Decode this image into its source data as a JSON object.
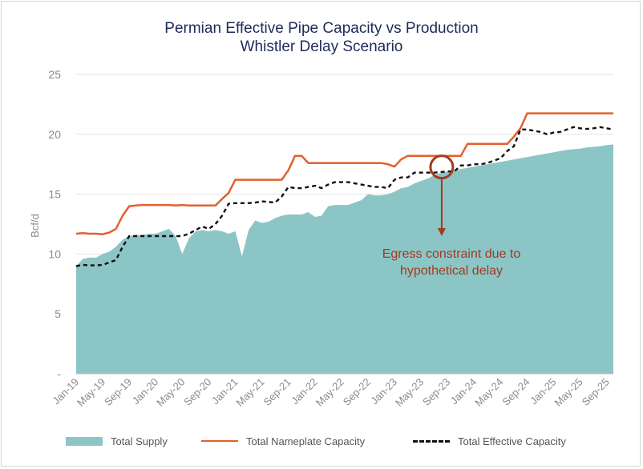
{
  "chart_data": {
    "type": "area",
    "title": "Permian Effective Pipe Capacity vs Production",
    "subtitle": "Whistler Delay Scenario",
    "ylabel": "Bcf/d",
    "xlabel": "",
    "ylim": [
      0,
      25
    ],
    "yticks": [
      "-",
      "5",
      "10",
      "15",
      "20",
      "25"
    ],
    "x_tick_labels": [
      "Jan-19",
      "May-19",
      "Sep-19",
      "Jan-20",
      "May-20",
      "Sep-20",
      "Jan-21",
      "May-21",
      "Sep-21",
      "Jan-22",
      "May-22",
      "Sep-22",
      "Jan-23",
      "May-23",
      "Sep-23",
      "Jan-24",
      "May-24",
      "Sep-24",
      "Jan-25",
      "May-25",
      "Sep-25"
    ],
    "grid": true,
    "legend_position": "bottom",
    "series": [
      {
        "name": "Total Supply",
        "type": "area",
        "color": "#8cc5c6",
        "values": [
          [
            0,
            9.0
          ],
          [
            1,
            9.6
          ],
          [
            2,
            9.7
          ],
          [
            3,
            9.7
          ],
          [
            4,
            10.0
          ],
          [
            5,
            10.2
          ],
          [
            6,
            10.6
          ],
          [
            7,
            11.2
          ],
          [
            8,
            11.5
          ],
          [
            9,
            11.6
          ],
          [
            10,
            11.6
          ],
          [
            11,
            11.7
          ],
          [
            12,
            11.7
          ],
          [
            13,
            11.9
          ],
          [
            14,
            12.1
          ],
          [
            15,
            11.5
          ],
          [
            16,
            10.0
          ],
          [
            17,
            11.3
          ],
          [
            18,
            11.9
          ],
          [
            19,
            12.0
          ],
          [
            20,
            11.9
          ],
          [
            21,
            12.0
          ],
          [
            22,
            11.9
          ],
          [
            23,
            11.7
          ],
          [
            24,
            11.9
          ],
          [
            25,
            9.8
          ],
          [
            26,
            12.0
          ],
          [
            27,
            12.8
          ],
          [
            28,
            12.6
          ],
          [
            29,
            12.7
          ],
          [
            30,
            13.0
          ],
          [
            31,
            13.2
          ],
          [
            32,
            13.3
          ],
          [
            33,
            13.3
          ],
          [
            34,
            13.3
          ],
          [
            35,
            13.5
          ],
          [
            36,
            13.1
          ],
          [
            37,
            13.2
          ],
          [
            38,
            14.0
          ],
          [
            39,
            14.1
          ],
          [
            40,
            14.1
          ],
          [
            41,
            14.1
          ],
          [
            42,
            14.3
          ],
          [
            43,
            14.5
          ],
          [
            44,
            15.0
          ],
          [
            45,
            14.9
          ],
          [
            46,
            14.9
          ],
          [
            47,
            15.0
          ],
          [
            48,
            15.2
          ],
          [
            49,
            15.5
          ],
          [
            50,
            15.6
          ],
          [
            51,
            15.9
          ],
          [
            52,
            16.1
          ],
          [
            53,
            16.3
          ],
          [
            54,
            16.6
          ],
          [
            55,
            16.8
          ],
          [
            56,
            16.9
          ],
          [
            57,
            17.0
          ],
          [
            58,
            17.1
          ],
          [
            59,
            17.2
          ],
          [
            60,
            17.3
          ],
          [
            61,
            17.4
          ],
          [
            62,
            17.5
          ],
          [
            63,
            17.6
          ],
          [
            64,
            17.7
          ],
          [
            65,
            17.8
          ],
          [
            66,
            17.9
          ],
          [
            67,
            18.0
          ],
          [
            68,
            18.1
          ],
          [
            69,
            18.2
          ],
          [
            70,
            18.3
          ],
          [
            71,
            18.4
          ],
          [
            72,
            18.5
          ],
          [
            73,
            18.6
          ],
          [
            74,
            18.7
          ],
          [
            75,
            18.75
          ],
          [
            76,
            18.8
          ],
          [
            77,
            18.9
          ],
          [
            78,
            18.95
          ],
          [
            79,
            19.0
          ],
          [
            80,
            19.1
          ],
          [
            81,
            19.15
          ]
        ]
      },
      {
        "name": "Total Nameplate Capacity",
        "type": "line",
        "color": "#e3602d",
        "values": [
          [
            0,
            11.7
          ],
          [
            1,
            11.75
          ],
          [
            2,
            11.7
          ],
          [
            3,
            11.7
          ],
          [
            4,
            11.65
          ],
          [
            5,
            11.8
          ],
          [
            6,
            12.1
          ],
          [
            7,
            13.2
          ],
          [
            8,
            14.0
          ],
          [
            9,
            14.05
          ],
          [
            10,
            14.1
          ],
          [
            11,
            14.1
          ],
          [
            12,
            14.1
          ],
          [
            13,
            14.1
          ],
          [
            14,
            14.1
          ],
          [
            15,
            14.05
          ],
          [
            16,
            14.1
          ],
          [
            17,
            14.05
          ],
          [
            18,
            14.05
          ],
          [
            19,
            14.05
          ],
          [
            20,
            14.05
          ],
          [
            21,
            14.05
          ],
          [
            22,
            14.6
          ],
          [
            23,
            15.1
          ],
          [
            24,
            16.2
          ],
          [
            25,
            16.2
          ],
          [
            26,
            16.2
          ],
          [
            27,
            16.2
          ],
          [
            28,
            16.2
          ],
          [
            29,
            16.2
          ],
          [
            30,
            16.2
          ],
          [
            31,
            16.2
          ],
          [
            32,
            17.0
          ],
          [
            33,
            18.2
          ],
          [
            34,
            18.2
          ],
          [
            35,
            17.6
          ],
          [
            36,
            17.6
          ],
          [
            37,
            17.6
          ],
          [
            38,
            17.6
          ],
          [
            39,
            17.6
          ],
          [
            40,
            17.6
          ],
          [
            41,
            17.6
          ],
          [
            42,
            17.6
          ],
          [
            43,
            17.6
          ],
          [
            44,
            17.6
          ],
          [
            45,
            17.6
          ],
          [
            46,
            17.6
          ],
          [
            47,
            17.5
          ],
          [
            48,
            17.3
          ],
          [
            49,
            17.9
          ],
          [
            50,
            18.2
          ],
          [
            51,
            18.2
          ],
          [
            52,
            18.2
          ],
          [
            53,
            18.2
          ],
          [
            54,
            18.2
          ],
          [
            55,
            18.2
          ],
          [
            56,
            18.2
          ],
          [
            57,
            18.2
          ],
          [
            58,
            18.2
          ],
          [
            59,
            19.2
          ],
          [
            60,
            19.2
          ],
          [
            61,
            19.2
          ],
          [
            62,
            19.2
          ],
          [
            63,
            19.2
          ],
          [
            64,
            19.2
          ],
          [
            65,
            19.2
          ],
          [
            66,
            19.8
          ],
          [
            67,
            20.5
          ],
          [
            68,
            21.75
          ],
          [
            69,
            21.75
          ],
          [
            70,
            21.75
          ],
          [
            71,
            21.75
          ],
          [
            72,
            21.75
          ],
          [
            73,
            21.75
          ],
          [
            74,
            21.75
          ],
          [
            75,
            21.75
          ],
          [
            76,
            21.75
          ],
          [
            77,
            21.75
          ],
          [
            78,
            21.75
          ],
          [
            79,
            21.75
          ],
          [
            80,
            21.75
          ],
          [
            81,
            21.75
          ]
        ]
      },
      {
        "name": "Total Effective Capacity",
        "type": "line-dashed",
        "color": "#111111",
        "values": [
          [
            0,
            9.0
          ],
          [
            1,
            9.1
          ],
          [
            2,
            9.05
          ],
          [
            3,
            9.05
          ],
          [
            4,
            9.1
          ],
          [
            5,
            9.3
          ],
          [
            6,
            9.5
          ],
          [
            7,
            10.6
          ],
          [
            8,
            11.5
          ],
          [
            9,
            11.5
          ],
          [
            10,
            11.5
          ],
          [
            11,
            11.5
          ],
          [
            12,
            11.5
          ],
          [
            13,
            11.5
          ],
          [
            14,
            11.5
          ],
          [
            15,
            11.5
          ],
          [
            16,
            11.5
          ],
          [
            17,
            11.7
          ],
          [
            18,
            12.0
          ],
          [
            19,
            12.3
          ],
          [
            20,
            12.1
          ],
          [
            21,
            12.5
          ],
          [
            22,
            13.2
          ],
          [
            23,
            14.2
          ],
          [
            24,
            14.25
          ],
          [
            25,
            14.25
          ],
          [
            26,
            14.25
          ],
          [
            27,
            14.3
          ],
          [
            28,
            14.4
          ],
          [
            29,
            14.35
          ],
          [
            30,
            14.3
          ],
          [
            31,
            14.8
          ],
          [
            32,
            15.6
          ],
          [
            33,
            15.5
          ],
          [
            34,
            15.5
          ],
          [
            35,
            15.6
          ],
          [
            36,
            15.7
          ],
          [
            37,
            15.5
          ],
          [
            38,
            15.8
          ],
          [
            39,
            16.0
          ],
          [
            40,
            16.0
          ],
          [
            41,
            16.0
          ],
          [
            42,
            15.9
          ],
          [
            43,
            15.8
          ],
          [
            44,
            15.7
          ],
          [
            45,
            15.6
          ],
          [
            46,
            15.6
          ],
          [
            47,
            15.5
          ],
          [
            48,
            16.2
          ],
          [
            49,
            16.4
          ],
          [
            50,
            16.4
          ],
          [
            51,
            16.8
          ],
          [
            52,
            16.8
          ],
          [
            53,
            16.8
          ],
          [
            54,
            16.8
          ],
          [
            55,
            16.85
          ],
          [
            56,
            16.9
          ],
          [
            57,
            16.9
          ],
          [
            58,
            17.4
          ],
          [
            59,
            17.4
          ],
          [
            60,
            17.5
          ],
          [
            61,
            17.5
          ],
          [
            62,
            17.6
          ],
          [
            63,
            17.8
          ],
          [
            64,
            18.0
          ],
          [
            65,
            18.6
          ],
          [
            66,
            19.0
          ],
          [
            67,
            20.4
          ],
          [
            68,
            20.4
          ],
          [
            69,
            20.3
          ],
          [
            70,
            20.2
          ],
          [
            71,
            20.0
          ],
          [
            72,
            20.15
          ],
          [
            73,
            20.2
          ],
          [
            74,
            20.4
          ],
          [
            75,
            20.6
          ],
          [
            76,
            20.5
          ],
          [
            77,
            20.45
          ],
          [
            78,
            20.5
          ],
          [
            79,
            20.6
          ],
          [
            80,
            20.5
          ],
          [
            81,
            20.4
          ]
        ]
      }
    ],
    "annotation": {
      "text_line1": "Egress constraint due to",
      "text_line2": "hypothetical delay",
      "color": "#a33a1d",
      "at": [
        55,
        17.0
      ]
    }
  }
}
